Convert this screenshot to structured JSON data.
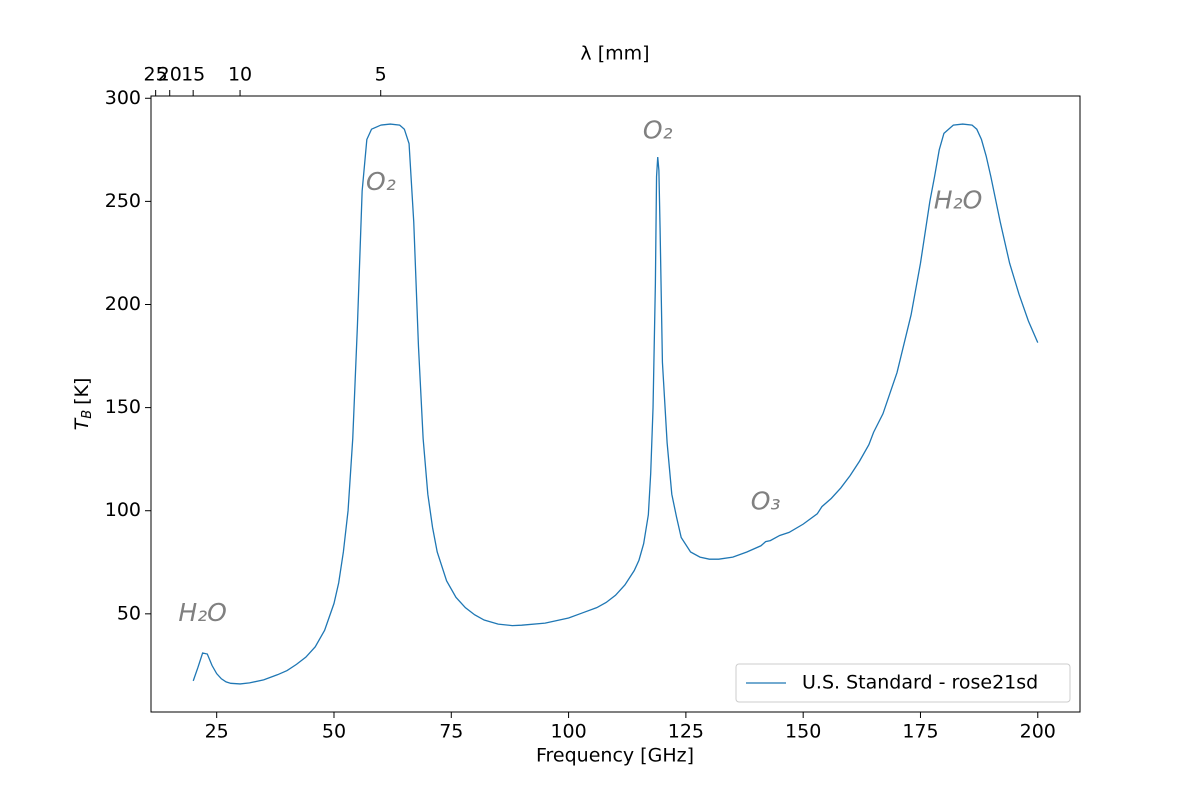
{
  "chart_data": {
    "type": "line",
    "xlabel": "Frequency [GHz]",
    "ylabel": {
      "symbol": "T",
      "subscript": "B",
      "unit": "[K]"
    },
    "x2label": "λ [mm]",
    "x": [
      20,
      21,
      22,
      23,
      24,
      25,
      26,
      27,
      28,
      30,
      32,
      35,
      38,
      40,
      42,
      44,
      46,
      48,
      50,
      51,
      52,
      53,
      54,
      55,
      56,
      57,
      58,
      60,
      62,
      64,
      65,
      66,
      67,
      68,
      69,
      70,
      71,
      72,
      74,
      76,
      78,
      80,
      82,
      85,
      88,
      90,
      95,
      100,
      103,
      106,
      108,
      110,
      112,
      114,
      115,
      116,
      117,
      117.5,
      118,
      118.5,
      118.75,
      119,
      119.25,
      119.5,
      120,
      121,
      122,
      123,
      124,
      126,
      128,
      130,
      132,
      135,
      138,
      141,
      142,
      143,
      145,
      147,
      150,
      153,
      154,
      156,
      158,
      160,
      162,
      164,
      165,
      167,
      170,
      173,
      175,
      177,
      178,
      179,
      180,
      182,
      184,
      186,
      187,
      188,
      189,
      190,
      192,
      194,
      196,
      198,
      200
    ],
    "series": [
      {
        "name": "U.S. Standard - rose21sd",
        "color": "#1f77b4",
        "values": [
          17.5,
          24,
          31,
          30.5,
          25,
          21,
          18.5,
          17,
          16.3,
          16,
          16.5,
          18,
          20.5,
          22.5,
          25.5,
          29,
          34,
          42,
          55,
          65,
          80,
          100,
          135,
          190,
          255,
          280,
          285,
          287,
          287.5,
          287,
          285,
          278,
          240,
          180,
          135,
          108,
          92,
          80,
          66,
          58,
          53,
          49.5,
          47,
          45,
          44.3,
          44.5,
          45.5,
          48,
          50.5,
          53,
          55.5,
          59,
          64,
          71,
          76,
          84,
          98,
          118,
          150,
          210,
          262,
          271.5,
          265,
          237,
          172,
          133,
          108,
          97,
          87,
          80,
          77.5,
          76.5,
          76.5,
          77.5,
          80,
          83,
          85,
          85.5,
          88,
          89.5,
          93.5,
          98.5,
          102,
          106,
          111,
          117,
          124,
          132,
          138,
          147,
          167,
          195,
          220,
          250,
          262,
          275,
          283,
          287,
          287.5,
          287,
          285,
          280,
          272,
          262,
          240,
          220,
          205,
          192,
          181.5
        ]
      }
    ],
    "xlim": [
      11,
      209
    ],
    "xticks": [
      25,
      50,
      75,
      100,
      125,
      150,
      175,
      200
    ],
    "ylim": [
      2.4,
      301.1
    ],
    "yticks": [
      50,
      100,
      150,
      200,
      250,
      300
    ],
    "x2ticks": [
      25,
      20,
      15,
      10,
      5
    ],
    "annotations": [
      {
        "text": "H₂O",
        "x": 22,
        "y": 50
      },
      {
        "text": "O₂",
        "x": 60,
        "y": 259
      },
      {
        "text": "O₂",
        "x": 119,
        "y": 284
      },
      {
        "text": "O₃",
        "x": 142,
        "y": 104
      },
      {
        "text": "H₂O",
        "x": 183,
        "y": 250
      }
    ],
    "legend": "lower right",
    "grid": false
  }
}
